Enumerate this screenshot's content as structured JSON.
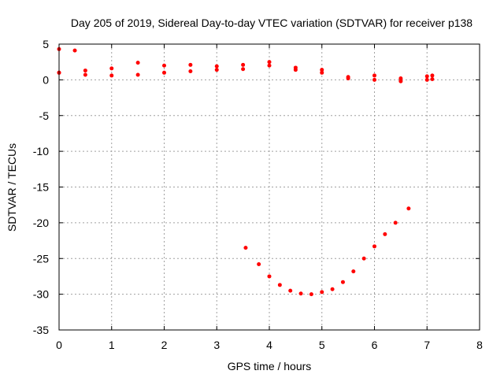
{
  "chart_data": {
    "type": "scatter",
    "title": "Day 205 of 2019, Sidereal Day-to-day VTEC variation (SDTVAR) for receiver p138",
    "xlabel": "GPS time / hours",
    "ylabel": "SDTVAR / TECUs",
    "xlim": [
      0,
      8
    ],
    "ylim": [
      -35,
      5
    ],
    "xticks": [
      "0",
      "1",
      "2",
      "3",
      "4",
      "5",
      "6",
      "7",
      "8"
    ],
    "yticks": [
      "5",
      "0",
      "-5",
      "-10",
      "-15",
      "-20",
      "-25",
      "-30",
      "-35"
    ],
    "grid": true,
    "legend": "none",
    "color": "#ff0000",
    "series": [
      {
        "x": [
          0.0,
          0.3
        ],
        "y": [
          4.3,
          4.1
        ]
      },
      {
        "x": [
          0.0,
          0.5,
          1.0,
          1.5,
          2.0,
          2.5,
          3.0,
          3.5,
          4.0,
          4.5,
          5.0,
          5.5,
          6.0,
          6.5,
          7.0,
          7.1
        ],
        "y": [
          1.0,
          1.3,
          1.6,
          2.4,
          2.0,
          2.1,
          1.9,
          2.1,
          2.5,
          1.7,
          1.4,
          0.4,
          0.6,
          0.2,
          0.5,
          0.6
        ]
      },
      {
        "x": [
          0.0,
          0.5,
          1.0,
          1.5,
          2.0,
          2.5,
          3.0,
          3.5,
          4.0,
          4.5,
          5.0,
          5.5,
          6.0,
          6.5,
          7.0,
          7.1
        ],
        "y": [
          1.0,
          0.7,
          0.6,
          0.7,
          1.0,
          1.2,
          1.4,
          1.5,
          2.0,
          1.4,
          1.0,
          0.2,
          0.0,
          -0.2,
          0.0,
          0.1
        ]
      },
      {
        "x": [
          3.55,
          3.8,
          4.0,
          4.2,
          4.4,
          4.6,
          4.8,
          5.0,
          5.2,
          5.4,
          5.6,
          5.8,
          6.0,
          6.2,
          6.4,
          6.65
        ],
        "y": [
          -23.5,
          -25.8,
          -27.5,
          -28.7,
          -29.5,
          -29.9,
          -30.0,
          -29.7,
          -29.3,
          -28.3,
          -26.8,
          -25.0,
          -23.3,
          -21.6,
          -20.0,
          -18.0
        ]
      }
    ]
  }
}
